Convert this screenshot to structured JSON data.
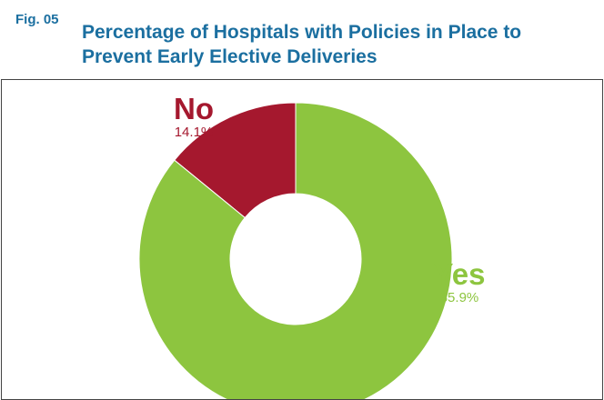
{
  "figure": {
    "label": "Fig. 05",
    "title": "Percentage of Hospitals with Policies in Place to Prevent Early Elective Deliveries"
  },
  "chart_data": {
    "type": "pie",
    "style": "donut",
    "title": "Percentage of Hospitals with Policies in Place to Prevent Early Elective Deliveries",
    "slices": [
      {
        "label": "No",
        "value": 14.1,
        "value_label": "14.1%",
        "color": "#a5182e"
      },
      {
        "label": "Yes",
        "value": 85.9,
        "value_label": "85.9%",
        "color": "#8dc53f"
      }
    ],
    "start_angle": "12 o'clock",
    "direction": "counter-clockwise from No"
  },
  "colors": {
    "title": "#1b6fa0",
    "no": "#a5182e",
    "yes": "#8dc53f",
    "border": "#444444"
  }
}
